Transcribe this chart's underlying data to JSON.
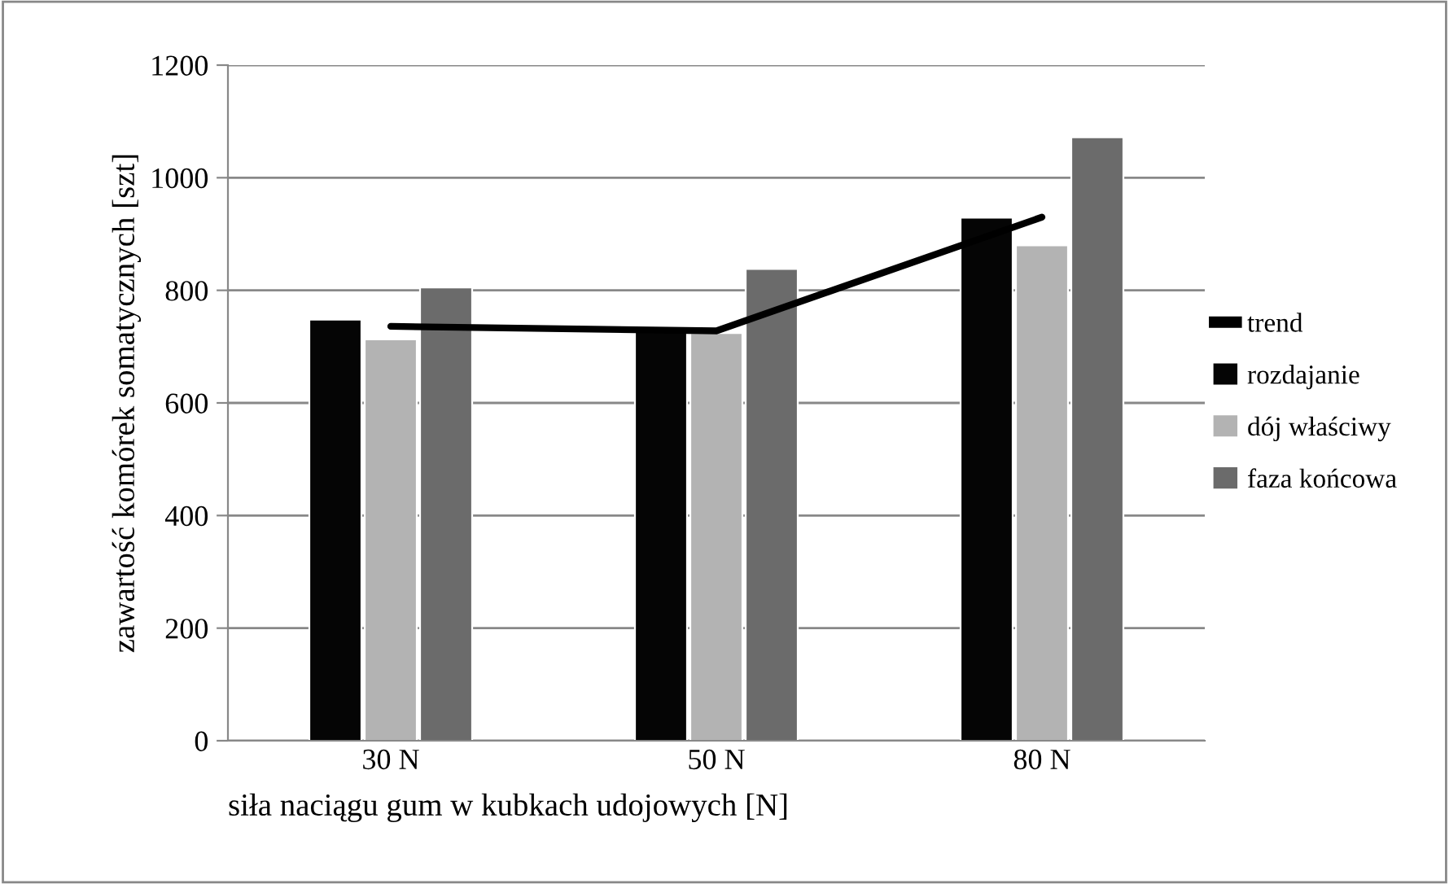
{
  "chart_data": {
    "type": "bar",
    "xlabel": "siła naciągu gum w kubkach udojowych [N]",
    "ylabel": "zawartość komórek somatycznych [szt]",
    "categories": [
      "30 N",
      "50 N",
      "80 N"
    ],
    "series": [
      {
        "name": "trend",
        "type": "line",
        "color": "#000000",
        "values": [
          736,
          728,
          930
        ]
      },
      {
        "name": "rozdajanie",
        "color": "#050505",
        "values": [
          748,
          732,
          929
        ]
      },
      {
        "name": "dój właściwy",
        "color": "#b3b3b3",
        "values": [
          713,
          724,
          880
        ]
      },
      {
        "name": "faza końcowa",
        "color": "#6b6b6b",
        "values": [
          805,
          838,
          1072
        ]
      }
    ],
    "ylim": [
      0,
      1200
    ],
    "yticks": [
      0,
      200,
      400,
      600,
      800,
      1000,
      1200
    ],
    "grid": "y",
    "legend": "right"
  }
}
